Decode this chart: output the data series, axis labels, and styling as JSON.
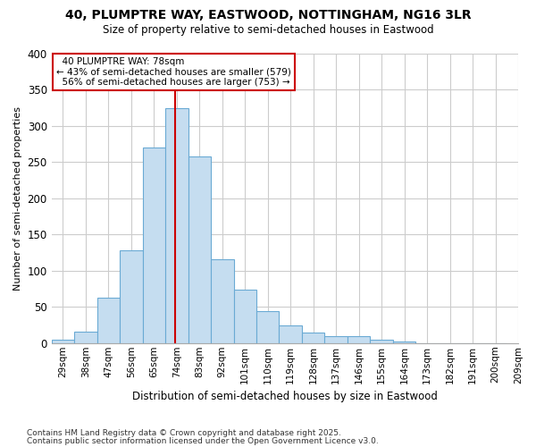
{
  "title1": "40, PLUMPTRE WAY, EASTWOOD, NOTTINGHAM, NG16 3LR",
  "title2": "Size of property relative to semi-detached houses in Eastwood",
  "xlabel": "Distribution of semi-detached houses by size in Eastwood",
  "ylabel": "Number of semi-detached properties",
  "pct_smaller": 43,
  "count_smaller": 579,
  "pct_larger": 56,
  "count_larger": 753,
  "bin_labels": [
    "29sqm",
    "38sqm",
    "47sqm",
    "56sqm",
    "65sqm",
    "74sqm",
    "83sqm",
    "92sqm",
    "101sqm",
    "110sqm",
    "119sqm",
    "128sqm",
    "137sqm",
    "146sqm",
    "155sqm",
    "164sqm",
    "173sqm",
    "182sqm",
    "191sqm",
    "200sqm",
    "209sqm"
  ],
  "bin_edges": [
    29,
    38,
    47,
    56,
    65,
    74,
    83,
    92,
    101,
    110,
    119,
    128,
    137,
    146,
    155,
    164,
    173,
    182,
    191,
    200,
    209
  ],
  "bar_heights": [
    5,
    16,
    63,
    128,
    270,
    325,
    258,
    116,
    74,
    44,
    25,
    15,
    10,
    9,
    5,
    2,
    0,
    0,
    0,
    0
  ],
  "bar_color": "#c5ddf0",
  "bar_edge_color": "#6aaad4",
  "vline_color": "#cc0000",
  "vline_x": 78,
  "ann_box_edge_color": "#cc0000",
  "background_color": "#ffffff",
  "plot_bg_color": "#ffffff",
  "grid_color": "#cccccc",
  "ylim_max": 400,
  "yticks": [
    0,
    50,
    100,
    150,
    200,
    250,
    300,
    350,
    400
  ],
  "footnote1": "Contains HM Land Registry data © Crown copyright and database right 2025.",
  "footnote2": "Contains public sector information licensed under the Open Government Licence v3.0."
}
